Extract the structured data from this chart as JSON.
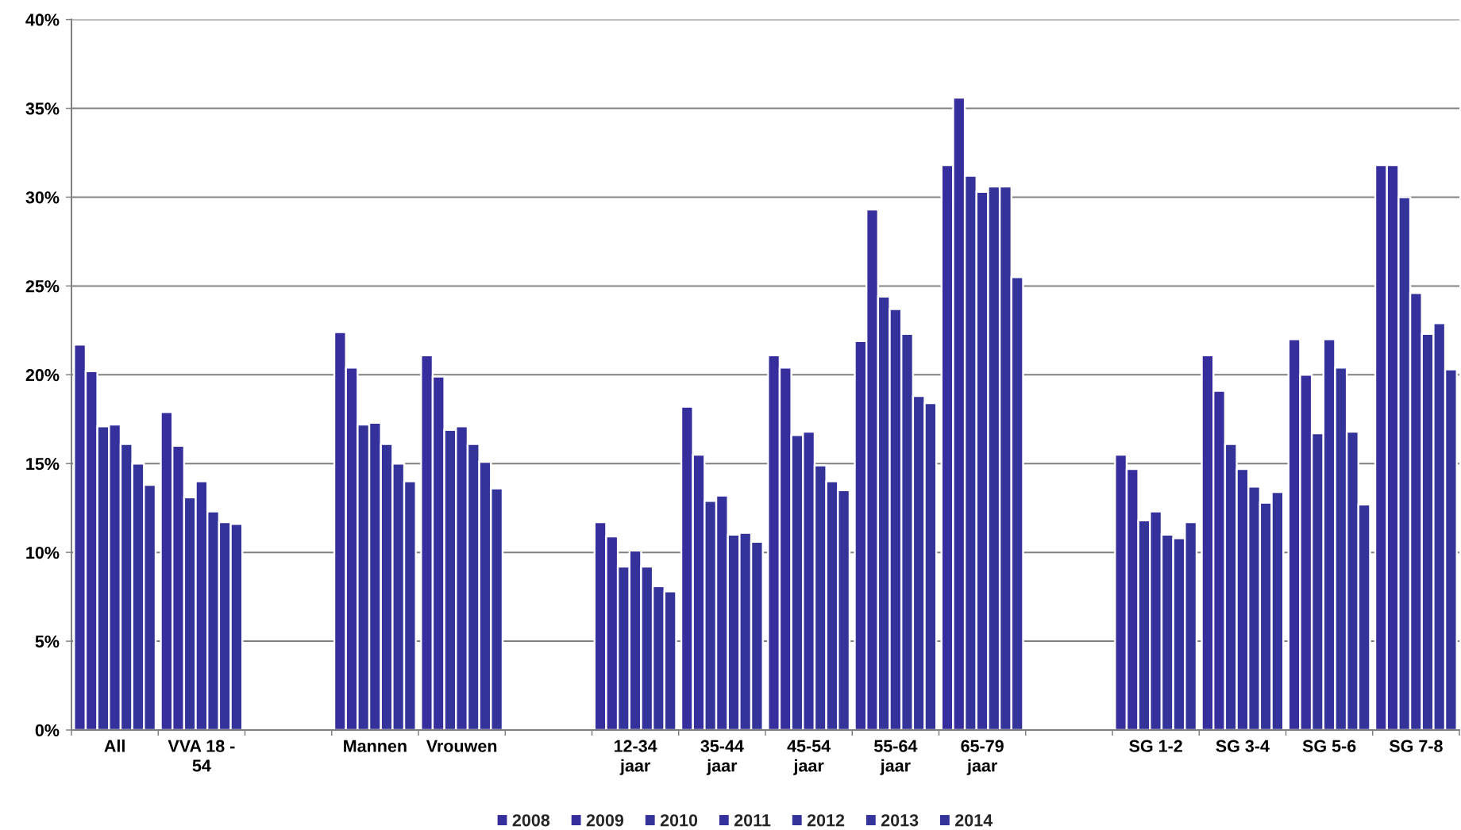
{
  "chart_data": {
    "type": "bar",
    "categories": [
      "All",
      "VVA 18 - 54",
      null,
      "Mannen",
      "Vrouwen",
      null,
      "12-34 jaar",
      "35-44 jaar",
      "45-54 jaar",
      "55-64 jaar",
      "65-79 jaar",
      null,
      "SG 1-2",
      "SG 3-4",
      "SG 5-6",
      "SG 7-8"
    ],
    "series": [
      {
        "name": "2008",
        "color": "#372e9e",
        "values": [
          21.7,
          17.9,
          null,
          22.4,
          21.1,
          null,
          11.7,
          18.2,
          21.1,
          21.9,
          31.8,
          null,
          15.5,
          21.1,
          22.0,
          31.8
        ]
      },
      {
        "name": "2009",
        "color": "#372e9e",
        "values": [
          20.2,
          16.0,
          null,
          20.4,
          19.9,
          null,
          10.9,
          15.5,
          20.4,
          29.3,
          35.6,
          null,
          14.7,
          19.1,
          20.0,
          31.8
        ]
      },
      {
        "name": "2010",
        "color": "#333399",
        "values": [
          17.1,
          13.1,
          null,
          17.2,
          16.9,
          null,
          9.2,
          12.9,
          16.6,
          24.4,
          31.2,
          null,
          11.8,
          16.1,
          16.7,
          30.0
        ]
      },
      {
        "name": "2011",
        "color": "#35319c",
        "values": [
          17.2,
          14.0,
          null,
          17.3,
          17.1,
          null,
          10.1,
          13.2,
          16.8,
          23.7,
          30.3,
          null,
          12.3,
          14.7,
          22.0,
          24.6
        ]
      },
      {
        "name": "2012",
        "color": "#333399",
        "values": [
          16.1,
          12.3,
          null,
          16.1,
          16.1,
          null,
          9.2,
          11.0,
          14.9,
          22.3,
          30.6,
          null,
          11.0,
          13.7,
          20.4,
          22.3
        ]
      },
      {
        "name": "2013",
        "color": "#34329b",
        "values": [
          15.0,
          11.7,
          null,
          15.0,
          15.1,
          null,
          8.1,
          11.1,
          14.0,
          18.8,
          30.6,
          null,
          10.8,
          12.8,
          16.8,
          22.9
        ]
      },
      {
        "name": "2014",
        "color": "#333399",
        "values": [
          13.8,
          11.6,
          null,
          14.0,
          13.6,
          null,
          7.8,
          10.6,
          13.5,
          18.4,
          25.5,
          null,
          11.7,
          13.4,
          12.7,
          20.3
        ]
      }
    ],
    "ylim": [
      0,
      40
    ],
    "yticks": [
      {
        "value": 0,
        "label": "0%"
      },
      {
        "value": 5,
        "label": "5%"
      },
      {
        "value": 10,
        "label": "10%"
      },
      {
        "value": 15,
        "label": "15%"
      },
      {
        "value": 20,
        "label": "20%"
      },
      {
        "value": 25,
        "label": "25%"
      },
      {
        "value": 30,
        "label": "30%"
      },
      {
        "value": 35,
        "label": "35%"
      },
      {
        "value": 40,
        "label": "40%"
      }
    ],
    "grid": "y",
    "legend": "bottom"
  }
}
